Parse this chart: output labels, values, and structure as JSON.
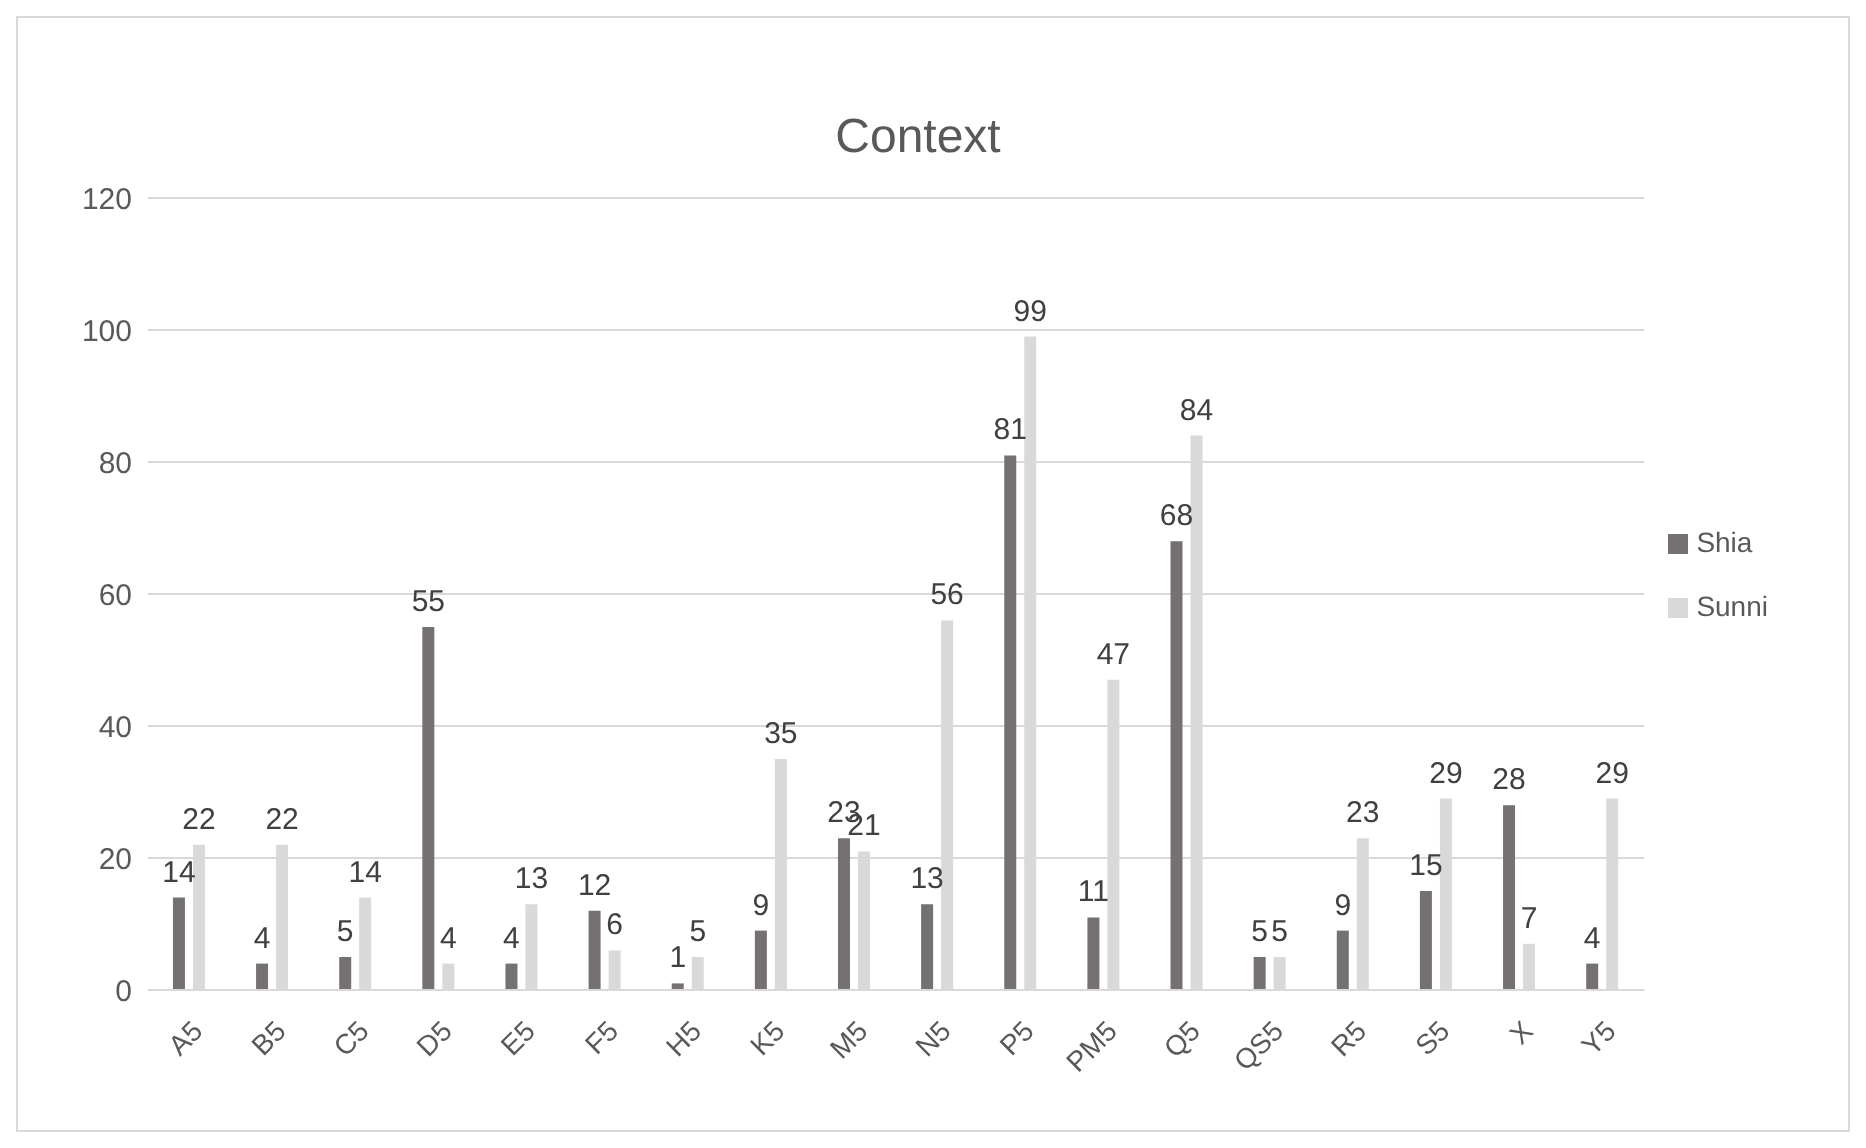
{
  "chart_data": {
    "type": "bar",
    "title": "Context",
    "categories": [
      "A5",
      "B5",
      "C5",
      "D5",
      "E5",
      "F5",
      "H5",
      "K5",
      "M5",
      "N5",
      "P5",
      "PM5",
      "Q5",
      "QS5",
      "R5",
      "S5",
      "X",
      "Y5"
    ],
    "series": [
      {
        "name": "Shia",
        "color": "#767171",
        "values": [
          14,
          4,
          5,
          55,
          4,
          12,
          1,
          9,
          23,
          13,
          81,
          11,
          68,
          5,
          9,
          15,
          28,
          4
        ]
      },
      {
        "name": "Sunni",
        "color": "#d9d9d9",
        "values": [
          22,
          22,
          14,
          4,
          13,
          6,
          5,
          35,
          21,
          56,
          99,
          47,
          84,
          5,
          23,
          29,
          7,
          29
        ]
      }
    ],
    "ylim": [
      0,
      120
    ],
    "yticks": [
      0,
      20,
      40,
      60,
      80,
      100,
      120
    ],
    "grid": "y",
    "legend": "right",
    "data_labels": true
  }
}
